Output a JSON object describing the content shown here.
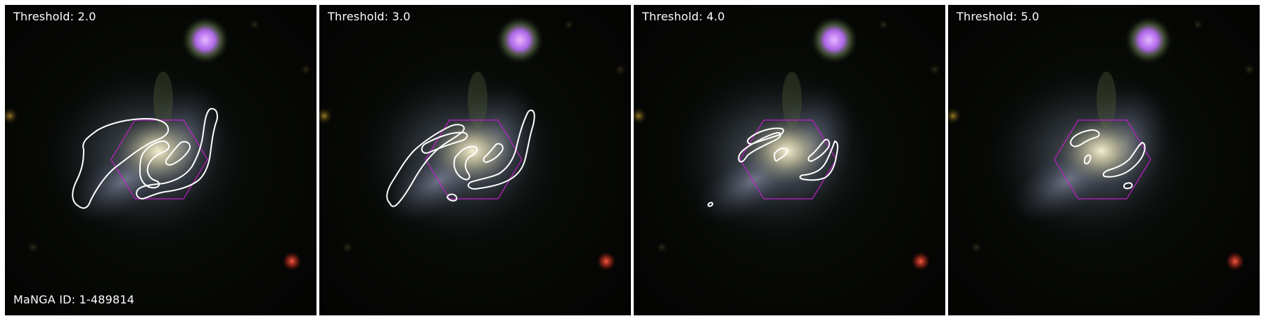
{
  "galaxy_id_label": "MaNGA ID: 1-489814",
  "panels": [
    {
      "threshold_label": "Threshold: 2.0"
    },
    {
      "threshold_label": "Threshold: 3.0"
    },
    {
      "threshold_label": "Threshold: 4.0"
    },
    {
      "threshold_label": "Threshold: 5.0"
    }
  ],
  "colors": {
    "contour": "#ffffff",
    "hexagon": "#c020c8",
    "foreground_star": "#c47cff",
    "red_source": "#ff3a2a",
    "label_text": "#ffffff"
  }
}
